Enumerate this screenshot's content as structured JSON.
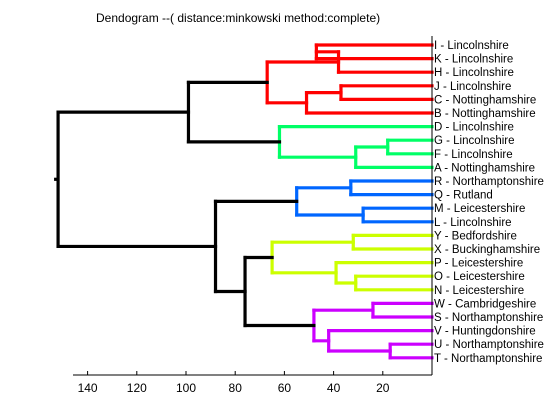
{
  "chart_data": {
    "type": "dendrogram",
    "title": "Dendogram --( distance:minkowski method:complete)",
    "x_axis": {
      "reversed": true,
      "range": [
        0,
        158
      ],
      "ticks": [
        140,
        120,
        100,
        80,
        60,
        40,
        20
      ]
    },
    "leaves": [
      "I - Lincolnshire",
      "K - Lincolnshire",
      "H - Lincolnshire",
      "J - Lincolnshire",
      "C - Nottinghamshire",
      "B - Nottinghamshire",
      "D - Lincolnshire",
      "G - Lincolnshire",
      "F - Lincolnshire",
      "A - Nottinghamshire",
      "R - Northamptonshire",
      "Q - Rutland",
      "M - Leicestershire",
      "L - Lincolnshire",
      "Y - Bedfordshire",
      "X - Buckinghamshire",
      "P - Leicestershire",
      "O - Leicestershire",
      "N - Leicestershire",
      "W - Cambridgeshire",
      "S - Northamptonshire",
      "V - Huntingdonshire",
      "U - Northamptonshire",
      "T - Northamptonshire"
    ],
    "merges": [
      {
        "id": "m1",
        "children": [
          "L0",
          "L1"
        ],
        "height": 47,
        "color": "#ff0000"
      },
      {
        "id": "m2",
        "children": [
          "m1",
          "L2"
        ],
        "height": 38,
        "color": "#ff0000"
      },
      {
        "id": "m3",
        "children": [
          "L3",
          "L4"
        ],
        "height": 37,
        "color": "#ff0000"
      },
      {
        "id": "m4",
        "children": [
          "m3",
          "L5"
        ],
        "height": 51,
        "color": "#ff0000"
      },
      {
        "id": "m5",
        "children": [
          "m2",
          "m4"
        ],
        "height": 67,
        "color": "#ff0000"
      },
      {
        "id": "m6",
        "children": [
          "L7",
          "L8"
        ],
        "height": 18,
        "color": "#00ff66"
      },
      {
        "id": "m7",
        "children": [
          "m6",
          "L9"
        ],
        "height": 31,
        "color": "#00ff66"
      },
      {
        "id": "m8",
        "children": [
          "L6",
          "m7"
        ],
        "height": 62,
        "color": "#00ff66"
      },
      {
        "id": "m9",
        "children": [
          "m5",
          "m8"
        ],
        "height": 99,
        "color": "#000000"
      },
      {
        "id": "m10",
        "children": [
          "L10",
          "L11"
        ],
        "height": 33,
        "color": "#0066ff"
      },
      {
        "id": "m11",
        "children": [
          "L12",
          "L13"
        ],
        "height": 28,
        "color": "#0066ff"
      },
      {
        "id": "m12",
        "children": [
          "m10",
          "m11"
        ],
        "height": 55,
        "color": "#0066ff"
      },
      {
        "id": "m13",
        "children": [
          "L14",
          "L15"
        ],
        "height": 32,
        "color": "#ccff00"
      },
      {
        "id": "m14",
        "children": [
          "L17",
          "L18"
        ],
        "height": 31,
        "color": "#ccff00"
      },
      {
        "id": "m15",
        "children": [
          "L16",
          "m14"
        ],
        "height": 39,
        "color": "#ccff00"
      },
      {
        "id": "m16",
        "children": [
          "m13",
          "m15"
        ],
        "height": 65,
        "color": "#ccff00"
      },
      {
        "id": "m17",
        "children": [
          "L19",
          "L20"
        ],
        "height": 24,
        "color": "#cc00ff"
      },
      {
        "id": "m18",
        "children": [
          "L22",
          "L23"
        ],
        "height": 17,
        "color": "#cc00ff"
      },
      {
        "id": "m19",
        "children": [
          "L21",
          "m18"
        ],
        "height": 42,
        "color": "#cc00ff"
      },
      {
        "id": "m20",
        "children": [
          "m17",
          "m19"
        ],
        "height": 48,
        "color": "#cc00ff"
      },
      {
        "id": "m21",
        "children": [
          "m16",
          "m20"
        ],
        "height": 76,
        "color": "#000000"
      },
      {
        "id": "m22",
        "children": [
          "m12",
          "m21"
        ],
        "height": 88,
        "color": "#000000"
      },
      {
        "id": "m23",
        "children": [
          "m9",
          "m22"
        ],
        "height": 152,
        "color": "#000000"
      }
    ]
  }
}
